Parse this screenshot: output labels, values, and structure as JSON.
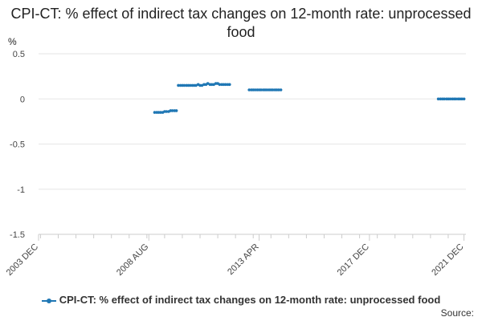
{
  "chart_data": {
    "type": "line",
    "title": "CPI-CT: % effect of indirect tax changes on 12-month rate: unprocessed food",
    "ylabel": "%",
    "ylim": [
      -1.5,
      0.5
    ],
    "y_ticks": [
      0.5,
      0,
      -0.5,
      -1,
      -1.5
    ],
    "y_tick_labels": [
      "0.5",
      "0",
      "-0.5",
      "-1",
      "-1.5"
    ],
    "x_range": [
      2003.917,
      2022.0
    ],
    "x_tick_labels": [
      {
        "label": "2003 DEC",
        "x": 2003.917
      },
      {
        "label": "2008 AUG",
        "x": 2008.583
      },
      {
        "label": "2013 APR",
        "x": 2013.25
      },
      {
        "label": "2017 DEC",
        "x": 2017.917
      },
      {
        "label": "2021 DEC",
        "x": 2021.917
      }
    ],
    "minor_ticks": [
      2006.25,
      2010.917,
      2015.583,
      2020.25
    ],
    "grid": true,
    "legend_position": "bottom",
    "series": [
      {
        "name": "CPI-CT: % effect of indirect tax changes on 12-month rate: unprocessed food",
        "color": "#1f77b4",
        "segments": [
          {
            "x": [
              2008.83,
              2008.92,
              2009.0,
              2009.08,
              2009.17,
              2009.25,
              2009.33,
              2009.42,
              2009.5,
              2009.58,
              2009.67,
              2009.75
            ],
            "y": [
              -0.15,
              -0.15,
              -0.15,
              -0.15,
              -0.15,
              -0.14,
              -0.14,
              -0.14,
              -0.13,
              -0.13,
              -0.13,
              -0.13
            ]
          },
          {
            "x": [
              2009.83,
              2009.92,
              2010.0,
              2010.08,
              2010.17,
              2010.25,
              2010.33,
              2010.42,
              2010.5,
              2010.58,
              2010.67,
              2010.75,
              2010.83,
              2010.92,
              2011.0,
              2011.08,
              2011.17,
              2011.25,
              2011.33,
              2011.42,
              2011.5,
              2011.58,
              2011.67,
              2011.75,
              2011.83,
              2011.92,
              2012.0
            ],
            "y": [
              0.15,
              0.15,
              0.15,
              0.15,
              0.15,
              0.15,
              0.15,
              0.15,
              0.15,
              0.15,
              0.16,
              0.15,
              0.15,
              0.16,
              0.16,
              0.17,
              0.16,
              0.16,
              0.16,
              0.17,
              0.17,
              0.16,
              0.16,
              0.16,
              0.16,
              0.16,
              0.16
            ]
          },
          {
            "x": [
              2012.83,
              2012.92,
              2013.0,
              2013.08,
              2013.17,
              2013.25,
              2013.33,
              2013.42,
              2013.5,
              2013.58,
              2013.67,
              2013.75,
              2013.83,
              2013.92,
              2014.0,
              2014.08,
              2014.17
            ],
            "y": [
              0.1,
              0.1,
              0.1,
              0.1,
              0.1,
              0.1,
              0.1,
              0.1,
              0.1,
              0.1,
              0.1,
              0.1,
              0.1,
              0.1,
              0.1,
              0.1,
              0.1
            ]
          },
          {
            "x": [
              2020.83,
              2020.92,
              2021.0,
              2021.08,
              2021.17,
              2021.25,
              2021.33,
              2021.42,
              2021.5,
              2021.58,
              2021.67,
              2021.75,
              2021.83,
              2021.92
            ],
            "y": [
              0,
              0,
              0,
              0,
              0,
              0,
              0,
              0,
              0,
              0,
              0,
              0,
              0,
              0
            ]
          }
        ]
      }
    ]
  },
  "legend": {
    "label": "CPI-CT: % effect of indirect tax changes on 12-month rate: unprocessed food"
  },
  "source_label": "Source:"
}
